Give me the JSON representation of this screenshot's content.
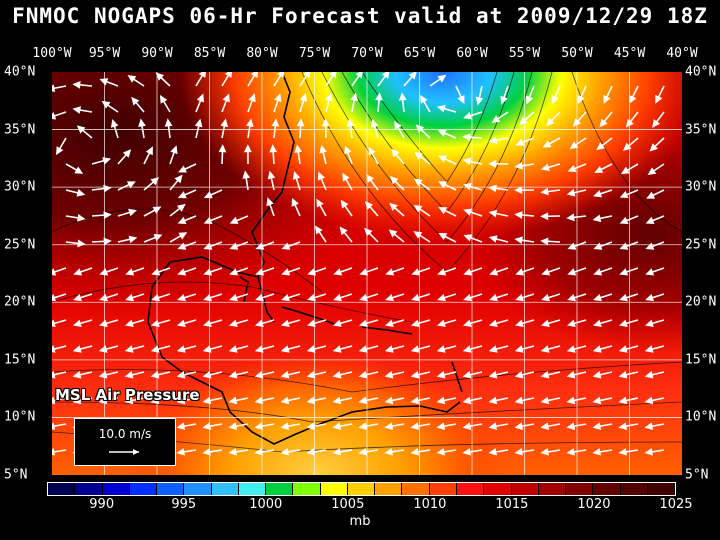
{
  "title": "FNMOC NOGAPS 06-Hr Forecast valid at 2009/12/29 18Z",
  "longitudes": [
    "100°W",
    "95°W",
    "90°W",
    "85°W",
    "80°W",
    "75°W",
    "70°W",
    "65°W",
    "60°W",
    "55°W",
    "50°W",
    "45°W",
    "40°W"
  ],
  "latitudes": [
    "40°N",
    "35°N",
    "30°N",
    "25°N",
    "20°N",
    "15°N",
    "10°N",
    "5°N"
  ],
  "field_label": "MSL Air Pressure",
  "reference_vector": "10.0 m/s",
  "colorbar": {
    "ticks": [
      "990",
      "995",
      "1000",
      "1005",
      "1010",
      "1015",
      "1020",
      "1025"
    ],
    "unit": "mb",
    "colors": [
      "#000050",
      "#000090",
      "#0000d0",
      "#0030ff",
      "#1060ff",
      "#2090ff",
      "#30c0ff",
      "#40f0f0",
      "#00d040",
      "#80ff00",
      "#ffff00",
      "#ffd000",
      "#ffa000",
      "#ff7000",
      "#ff4000",
      "#ff1010",
      "#e00000",
      "#c00000",
      "#a00000",
      "#800000",
      "#600000",
      "#500000",
      "#400000"
    ]
  }
}
